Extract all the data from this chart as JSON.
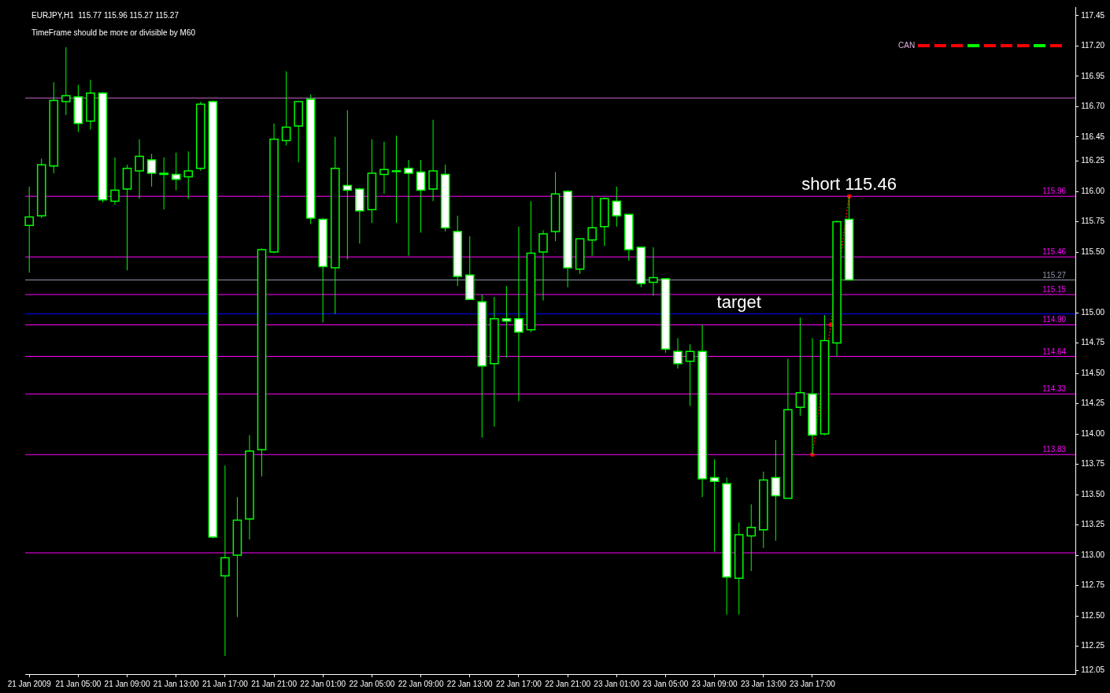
{
  "chart_data": {
    "type": "candlestick",
    "title": "EURJPY,H1  115.77 115.96 115.27 115.27",
    "subtitle": "TimeFrame should be more or divisible by M60",
    "x": [
      "2009-01-21T01:00",
      "2009-01-21T02:00",
      "2009-01-21T03:00",
      "2009-01-21T04:00",
      "2009-01-21T05:00",
      "2009-01-21T06:00",
      "2009-01-21T07:00",
      "2009-01-21T08:00",
      "2009-01-21T09:00",
      "2009-01-21T10:00",
      "2009-01-21T11:00",
      "2009-01-21T12:00",
      "2009-01-21T13:00",
      "2009-01-21T14:00",
      "2009-01-21T15:00",
      "2009-01-21T16:00",
      "2009-01-21T17:00",
      "2009-01-21T18:00",
      "2009-01-21T19:00",
      "2009-01-21T20:00",
      "2009-01-21T21:00",
      "2009-01-21T22:00",
      "2009-01-21T23:00",
      "2009-01-22T00:00",
      "2009-01-22T01:00",
      "2009-01-22T02:00",
      "2009-01-22T03:00",
      "2009-01-22T04:00",
      "2009-01-22T05:00",
      "2009-01-22T06:00",
      "2009-01-22T07:00",
      "2009-01-22T08:00",
      "2009-01-22T09:00",
      "2009-01-22T10:00",
      "2009-01-22T11:00",
      "2009-01-22T12:00",
      "2009-01-22T13:00",
      "2009-01-22T14:00",
      "2009-01-22T15:00",
      "2009-01-22T16:00",
      "2009-01-22T17:00",
      "2009-01-22T18:00",
      "2009-01-22T19:00",
      "2009-01-22T20:00",
      "2009-01-22T21:00",
      "2009-01-22T22:00",
      "2009-01-22T23:00",
      "2009-01-23T00:00",
      "2009-01-23T01:00",
      "2009-01-23T02:00",
      "2009-01-23T03:00",
      "2009-01-23T04:00",
      "2009-01-23T05:00",
      "2009-01-23T06:00",
      "2009-01-23T07:00",
      "2009-01-23T08:00",
      "2009-01-23T09:00",
      "2009-01-23T10:00",
      "2009-01-23T11:00",
      "2009-01-23T12:00",
      "2009-01-23T13:00",
      "2009-01-23T14:00",
      "2009-01-23T15:00",
      "2009-01-23T16:00",
      "2009-01-23T17:00",
      "2009-01-23T18:00",
      "2009-01-23T19:00",
      "2009-01-23T20:00"
    ],
    "series": [
      {
        "type": "candlestick",
        "color": "#00ff00",
        "colors": [
          "#000000",
          "#000000",
          "#000000",
          "#000000",
          "#ffffff",
          "#000000",
          "#ffffff",
          "#000000",
          "#000000",
          "#000000",
          "#ffffff",
          "#000000",
          "#ffffff",
          "#000000",
          "#000000",
          "#ffffff",
          "#000000",
          "#000000",
          "#000000",
          "#000000",
          "#000000",
          "#000000",
          "#000000",
          "#ffffff",
          "#ffffff",
          "#000000",
          "#ffffff",
          "#ffffff",
          "#000000",
          "#000000",
          "#000000",
          "#ffffff",
          "#ffffff",
          "#000000",
          "#ffffff",
          "#ffffff",
          "#ffffff",
          "#ffffff",
          "#000000",
          "#ffffff",
          "#ffffff",
          "#000000",
          "#000000",
          "#000000",
          "#ffffff",
          "#000000",
          "#000000",
          "#000000",
          "#ffffff",
          "#ffffff",
          "#ffffff",
          "#000000",
          "#ffffff",
          "#ffffff",
          "#000000",
          "#ffffff",
          "#ffffff",
          "#ffffff",
          "#000000",
          "#000000",
          "#000000",
          "#ffffff",
          "#000000",
          "#000000",
          "#ffffff",
          "#000000",
          "#000000",
          "#ffffff"
        ],
        "ohlc": [
          [
            115.72,
            116.04,
            115.33,
            115.79
          ],
          [
            115.8,
            116.27,
            115.78,
            116.22
          ],
          [
            116.21,
            116.9,
            116.15,
            116.75
          ],
          [
            116.74,
            117.19,
            116.63,
            116.79
          ],
          [
            116.78,
            116.88,
            116.49,
            116.56
          ],
          [
            116.58,
            116.92,
            116.51,
            116.81
          ],
          [
            116.81,
            116.82,
            115.91,
            115.93
          ],
          [
            115.92,
            116.28,
            115.89,
            116.01
          ],
          [
            116.02,
            116.22,
            115.35,
            116.19
          ],
          [
            116.17,
            116.43,
            115.94,
            116.29
          ],
          [
            116.26,
            116.31,
            116.04,
            116.15
          ],
          [
            116.14,
            116.28,
            115.85,
            116.15
          ],
          [
            116.14,
            116.32,
            116.01,
            116.1
          ],
          [
            116.12,
            116.33,
            115.94,
            116.17
          ],
          [
            116.19,
            116.74,
            116.17,
            116.72
          ],
          [
            116.74,
            116.75,
            113.14,
            113.15
          ],
          [
            112.83,
            113.74,
            112.17,
            112.98
          ],
          [
            113.0,
            113.48,
            112.49,
            113.29
          ],
          [
            113.3,
            113.99,
            113.13,
            113.86
          ],
          [
            113.87,
            115.53,
            113.65,
            115.52
          ],
          [
            115.5,
            116.56,
            115.49,
            116.43
          ],
          [
            116.42,
            116.99,
            116.38,
            116.53
          ],
          [
            116.54,
            116.74,
            116.24,
            116.74
          ],
          [
            116.76,
            116.8,
            115.73,
            115.78
          ],
          [
            115.77,
            115.78,
            114.92,
            115.38
          ],
          [
            115.37,
            116.45,
            114.99,
            116.19
          ],
          [
            116.05,
            116.67,
            115.44,
            116.01
          ],
          [
            116.02,
            116.03,
            115.57,
            115.84
          ],
          [
            115.85,
            116.43,
            115.74,
            116.15
          ],
          [
            116.14,
            116.41,
            115.98,
            116.18
          ],
          [
            116.17,
            116.46,
            115.74,
            116.17
          ],
          [
            116.19,
            116.26,
            115.47,
            116.15
          ],
          [
            116.16,
            116.26,
            115.66,
            116.01
          ],
          [
            116.02,
            116.59,
            115.92,
            116.17
          ],
          [
            116.14,
            116.22,
            115.67,
            115.7
          ],
          [
            115.67,
            115.8,
            115.22,
            115.3
          ],
          [
            115.31,
            115.63,
            115.11,
            115.11
          ],
          [
            115.09,
            115.15,
            113.97,
            114.56
          ],
          [
            114.58,
            115.13,
            114.06,
            114.95
          ],
          [
            114.95,
            115.22,
            114.63,
            114.93
          ],
          [
            114.95,
            115.71,
            114.27,
            114.84
          ],
          [
            114.86,
            115.92,
            114.84,
            115.49
          ],
          [
            115.5,
            115.68,
            115.1,
            115.65
          ],
          [
            115.67,
            116.16,
            115.59,
            115.98
          ],
          [
            116.0,
            116.01,
            115.21,
            115.37
          ],
          [
            115.36,
            115.61,
            115.32,
            115.61
          ],
          [
            115.6,
            115.96,
            115.47,
            115.7
          ],
          [
            115.71,
            115.95,
            115.55,
            115.94
          ],
          [
            115.92,
            116.04,
            115.71,
            115.8
          ],
          [
            115.81,
            115.81,
            115.43,
            115.52
          ],
          [
            115.54,
            115.54,
            115.21,
            115.24
          ],
          [
            115.25,
            115.54,
            115.14,
            115.29
          ],
          [
            115.28,
            115.28,
            114.67,
            114.7
          ],
          [
            114.68,
            114.79,
            114.54,
            114.58
          ],
          [
            114.6,
            114.74,
            114.23,
            114.68
          ],
          [
            114.68,
            114.9,
            113.48,
            113.63
          ],
          [
            113.64,
            113.79,
            113.03,
            113.61
          ],
          [
            113.59,
            113.64,
            112.51,
            112.82
          ],
          [
            112.81,
            113.27,
            112.51,
            113.17
          ],
          [
            113.16,
            113.42,
            112.87,
            113.23
          ],
          [
            113.21,
            113.69,
            113.06,
            113.62
          ],
          [
            113.64,
            113.95,
            113.12,
            113.49
          ],
          [
            113.47,
            114.62,
            113.47,
            114.2
          ],
          [
            114.22,
            114.96,
            114.15,
            114.34
          ],
          [
            114.33,
            114.79,
            113.83,
            113.99
          ],
          [
            114.0,
            114.98,
            113.99,
            114.77
          ],
          [
            114.75,
            115.76,
            114.64,
            115.75
          ],
          [
            115.77,
            115.96,
            115.27,
            115.27
          ]
        ]
      },
      {
        "type": "line",
        "x": [
          "2009-01-23T17:00",
          "2009-01-23T18:30",
          "2009-01-23T20:00"
        ],
        "values": [
          113.83,
          114.9,
          115.96
        ],
        "color": "#ff0000",
        "line_style": "dotted",
        "marker": "circle"
      }
    ],
    "xlim": [
      "2009-01-21T00:40",
      "2009-01-24T14:30"
    ],
    "xticks": [
      {
        "value": "2009-01-21T01:00",
        "label": "21 Jan 2009"
      },
      {
        "value": "2009-01-21T05:00",
        "label": "21 Jan 05:00"
      },
      {
        "value": "2009-01-21T09:00",
        "label": "21 Jan 09:00"
      },
      {
        "value": "2009-01-21T13:00",
        "label": "21 Jan 13:00"
      },
      {
        "value": "2009-01-21T17:00",
        "label": "21 Jan 17:00"
      },
      {
        "value": "2009-01-21T21:00",
        "label": "21 Jan 21:00"
      },
      {
        "value": "2009-01-22T01:00",
        "label": "22 Jan 01:00"
      },
      {
        "value": "2009-01-22T05:00",
        "label": "22 Jan 05:00"
      },
      {
        "value": "2009-01-22T09:00",
        "label": "22 Jan 09:00"
      },
      {
        "value": "2009-01-22T13:00",
        "label": "22 Jan 13:00"
      },
      {
        "value": "2009-01-22T17:00",
        "label": "22 Jan 17:00"
      },
      {
        "value": "2009-01-22T21:00",
        "label": "22 Jan 21:00"
      },
      {
        "value": "2009-01-23T01:00",
        "label": "23 Jan 01:00"
      },
      {
        "value": "2009-01-23T05:00",
        "label": "23 Jan 05:00"
      },
      {
        "value": "2009-01-23T09:00",
        "label": "23 Jan 09:00"
      },
      {
        "value": "2009-01-23T13:00",
        "label": "23 Jan 13:00"
      },
      {
        "value": "2009-01-23T17:00",
        "label": "23 Jan 17:00"
      }
    ],
    "ylim": [
      112.02,
      117.52
    ],
    "yticks": [
      {
        "value": 112.05,
        "label": "112.05"
      },
      {
        "value": 112.25,
        "label": "112.25"
      },
      {
        "value": 112.5,
        "label": "112.50"
      },
      {
        "value": 112.75,
        "label": "112.75"
      },
      {
        "value": 113,
        "label": "113.00"
      },
      {
        "value": 113.25,
        "label": "113.25"
      },
      {
        "value": 113.5,
        "label": "113.50"
      },
      {
        "value": 113.75,
        "label": "113.75"
      },
      {
        "value": 114,
        "label": "114.00"
      },
      {
        "value": 114.25,
        "label": "114.25"
      },
      {
        "value": 114.5,
        "label": "114.50"
      },
      {
        "value": 114.75,
        "label": "114.75"
      },
      {
        "value": 115,
        "label": "115.00"
      },
      {
        "value": 115.5,
        "label": "115.50"
      },
      {
        "value": 115.75,
        "label": "115.75"
      },
      {
        "value": 116,
        "label": "116.00"
      },
      {
        "value": 116.25,
        "label": "116.25"
      },
      {
        "value": 116.45,
        "label": "116.45"
      },
      {
        "value": 116.7,
        "label": "116.70"
      },
      {
        "value": 116.95,
        "label": "116.95"
      },
      {
        "value": 117.2,
        "label": "117.20"
      },
      {
        "value": 117.45,
        "label": "117.45"
      }
    ],
    "ref_lines": [
      {
        "axis": "y",
        "value": 116.77,
        "label": null,
        "color": "#c060c0"
      },
      {
        "axis": "y",
        "value": 115.96,
        "label": "115.96",
        "color": "#ff00ff"
      },
      {
        "axis": "y",
        "value": 115.46,
        "label": "115.46",
        "color": "#ff00ff"
      },
      {
        "axis": "y",
        "value": 115.27,
        "label": "115.27",
        "color": "#8c96a8"
      },
      {
        "axis": "y",
        "value": 115.15,
        "label": "115.15",
        "color": "#ff00ff"
      },
      {
        "axis": "y",
        "value": 114.99,
        "label": null,
        "color": "#0000ff"
      },
      {
        "axis": "y",
        "value": 114.9,
        "label": "114.90",
        "color": "#ff00ff"
      },
      {
        "axis": "y",
        "value": 114.64,
        "label": "114.64",
        "color": "#ff00ff"
      },
      {
        "axis": "y",
        "value": 114.33,
        "label": "114.33",
        "color": "#ff00ff"
      },
      {
        "axis": "y",
        "value": 113.83,
        "label": "113.83",
        "color": "#ff00ff"
      },
      {
        "axis": "y",
        "value": 113.02,
        "label": null,
        "color": "#ff00ff"
      }
    ],
    "annotations": [
      "CAN",
      {
        "text": "short 115.46",
        "x": "2009-01-23T20:00",
        "y": 115.96
      },
      {
        "text": "target",
        "x": "2009-01-23T11:00",
        "y": 114.99
      }
    ]
  }
}
